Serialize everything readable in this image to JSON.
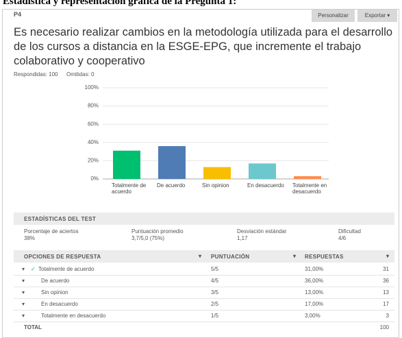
{
  "page_heading": "Estadística y representación gráfica de la Pregunta 1:",
  "question": {
    "number": "P4",
    "text": "Es necesario realizar cambios en la metodología utilizada para el desarrollo de los cursos a distancia en la ESGE-EPG, que incremente el trabajo colaborativo y cooperativo",
    "answered_label": "Respondidas: 100",
    "skipped_label": "Omitidas: 0"
  },
  "buttons": [
    "Personalizar",
    "Exportar"
  ],
  "chart_data": {
    "type": "bar",
    "categories": [
      "Totalmente de acuerdo",
      "De acuerdo",
      "Sin opinion",
      "En desacuerdo",
      "Totalmente en desacuerdo"
    ],
    "values": [
      31,
      36,
      13,
      17,
      3
    ],
    "colors": [
      "#00bf6f",
      "#507cb6",
      "#f9be00",
      "#6bc8cd",
      "#ff8b4f"
    ],
    "ylim": [
      0,
      100
    ],
    "yticks": [
      {
        "value": 0,
        "label": "0%"
      },
      {
        "value": 20,
        "label": "20%"
      },
      {
        "value": 40,
        "label": "40%"
      },
      {
        "value": 60,
        "label": "60%"
      },
      {
        "value": 80,
        "label": "80%"
      },
      {
        "value": 100,
        "label": "100%"
      }
    ]
  },
  "stats": {
    "title": "ESTADÍSTICAS DEL TEST",
    "items": [
      {
        "label": "Porcentaje de aciertos",
        "value": "38%"
      },
      {
        "label": "Puntuación promedio",
        "value": "3,7/5,0 (75%)"
      },
      {
        "label": "Desviación estándar",
        "value": "1,17"
      },
      {
        "label": "Dificultad",
        "value": "4/6"
      }
    ]
  },
  "table": {
    "headers": [
      "OPCIONES DE RESPUESTA",
      "PUNTUACIÓN",
      "RESPUESTAS"
    ],
    "rows": [
      {
        "option": "Totalmente de acuerdo",
        "score": "5/5",
        "percent": "31,00%",
        "count": 31
      },
      {
        "option": "De acuerdo",
        "score": "4/5",
        "percent": "36,00%",
        "count": 36
      },
      {
        "option": "Sin opinion",
        "score": "3/5",
        "percent": "13,00%",
        "count": 13
      },
      {
        "option": "En desacuerdo",
        "score": "2/5",
        "percent": "17,00%",
        "count": 17
      },
      {
        "option": "Totalmente en desacuerdo",
        "score": "1/5",
        "percent": "3,00%",
        "count": 3
      }
    ],
    "total": {
      "label": "TOTAL",
      "count": 100
    }
  }
}
